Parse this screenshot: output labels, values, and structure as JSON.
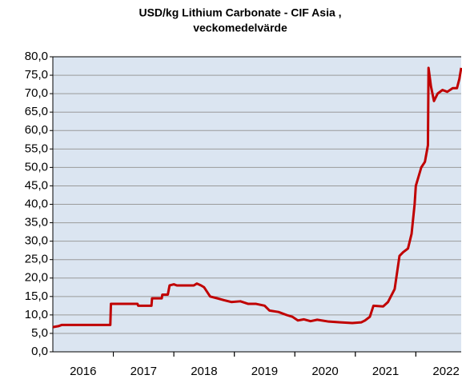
{
  "chart_data": {
    "type": "line",
    "title": [
      "USD/kg Lithium Carbonate - CIF Asia ,",
      "veckomedelvärde"
    ],
    "x": [
      2016.0,
      2016.1,
      2016.15,
      2016.95,
      2016.96,
      2017.4,
      2017.41,
      2017.63,
      2017.64,
      2017.8,
      2017.81,
      2017.9,
      2017.93,
      2018.0,
      2018.05,
      2018.33,
      2018.38,
      2018.45,
      2018.5,
      2018.6,
      2018.72,
      2018.83,
      2018.95,
      2019.1,
      2019.23,
      2019.36,
      2019.5,
      2019.58,
      2019.73,
      2019.86,
      2019.96,
      2020.05,
      2020.15,
      2020.26,
      2020.37,
      2020.56,
      2020.75,
      2020.95,
      2021.1,
      2021.16,
      2021.24,
      2021.3,
      2021.46,
      2021.54,
      2021.65,
      2021.73,
      2021.79,
      2021.87,
      2021.93,
      2021.98,
      2022.0,
      2022.09,
      2022.15,
      2022.2,
      2022.21,
      2022.25,
      2022.3,
      2022.36,
      2022.44,
      2022.52,
      2022.61,
      2022.68,
      2022.72,
      2022.75
    ],
    "series": [
      {
        "name": "USD/kg",
        "color": "#c00000",
        "values": [
          6.7,
          7.0,
          7.3,
          7.3,
          13.0,
          13.0,
          12.5,
          12.5,
          14.5,
          14.5,
          15.5,
          15.5,
          18.0,
          18.3,
          18.0,
          18.0,
          18.5,
          18.0,
          17.5,
          15.0,
          14.5,
          14.0,
          13.5,
          13.7,
          13.0,
          13.0,
          12.5,
          11.2,
          10.8,
          10.0,
          9.5,
          8.5,
          8.8,
          8.3,
          8.7,
          8.2,
          8.0,
          7.8,
          8.0,
          8.5,
          9.5,
          12.5,
          12.3,
          13.5,
          17.0,
          26.0,
          27.0,
          28.0,
          32.0,
          40.0,
          45.0,
          50.0,
          51.5,
          56.0,
          77.0,
          72.0,
          68.0,
          70.0,
          71.0,
          70.5,
          71.5,
          71.5,
          74.0,
          77.0
        ]
      }
    ],
    "xlim": [
      2016.0,
      2022.75
    ],
    "xticks": [
      {
        "value": 2016.5,
        "label": "2016"
      },
      {
        "value": 2017.5,
        "label": "2017"
      },
      {
        "value": 2018.5,
        "label": "2018"
      },
      {
        "value": 2019.5,
        "label": "2019"
      },
      {
        "value": 2020.5,
        "label": "2020"
      },
      {
        "value": 2021.5,
        "label": "2021"
      },
      {
        "value": 2022.5,
        "label": "2022"
      }
    ],
    "ylim": [
      0,
      80
    ],
    "yticks": [
      {
        "value": 0,
        "label": "0,0"
      },
      {
        "value": 5,
        "label": "5,0"
      },
      {
        "value": 10,
        "label": "10,0"
      },
      {
        "value": 15,
        "label": "15,0"
      },
      {
        "value": 20,
        "label": "20,0"
      },
      {
        "value": 25,
        "label": "25,0"
      },
      {
        "value": 30,
        "label": "30,0"
      },
      {
        "value": 35,
        "label": "35,0"
      },
      {
        "value": 40,
        "label": "40,0"
      },
      {
        "value": 45,
        "label": "45,0"
      },
      {
        "value": 50,
        "label": "50,0"
      },
      {
        "value": 55,
        "label": "55,0"
      },
      {
        "value": 60,
        "label": "60,0"
      },
      {
        "value": 65,
        "label": "65,0"
      },
      {
        "value": 70,
        "label": "70,0"
      },
      {
        "value": 75,
        "label": "75,0"
      },
      {
        "value": 80,
        "label": "80,0"
      }
    ],
    "grid": true
  }
}
